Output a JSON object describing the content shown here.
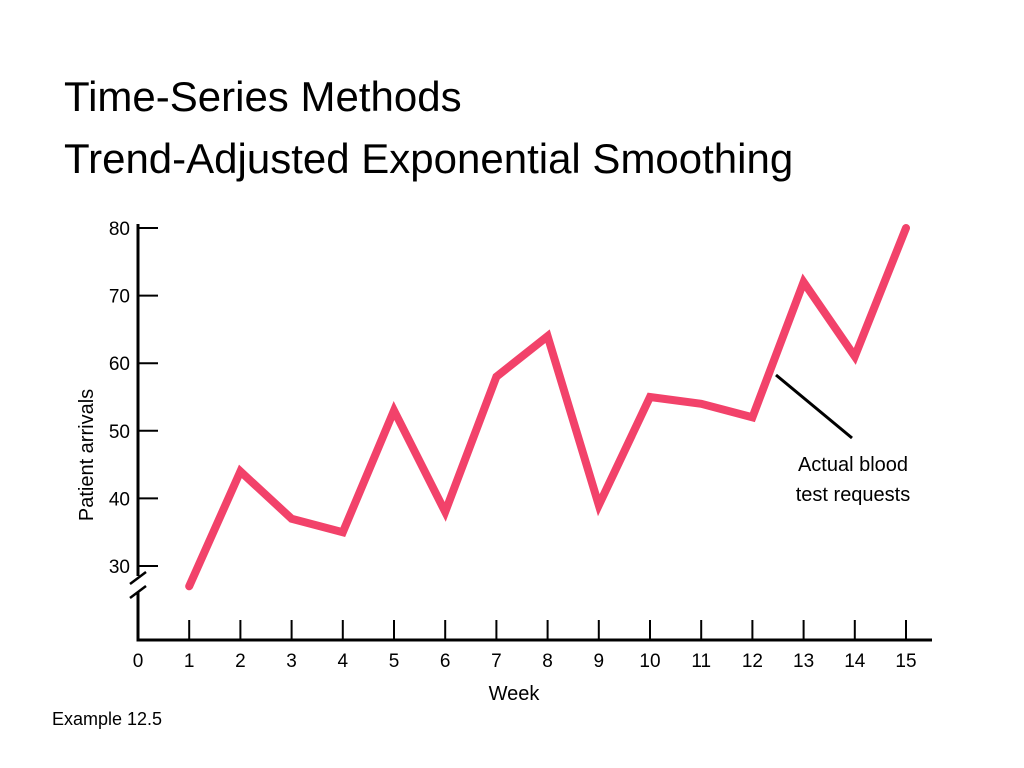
{
  "slide": {
    "title_line1": "Time-Series Methods",
    "title_line2": "Trend-Adjusted Exponential Smoothing",
    "footnote": "Example 12.5"
  },
  "chart_data": {
    "type": "line",
    "xlabel": "Week",
    "ylabel": "Patient arrivals",
    "x_ticks": [
      0,
      1,
      2,
      3,
      4,
      5,
      6,
      7,
      8,
      9,
      10,
      11,
      12,
      13,
      14,
      15
    ],
    "y_ticks": [
      30,
      40,
      50,
      60,
      70,
      80
    ],
    "ylim": [
      30,
      80
    ],
    "y_axis_break": true,
    "grid": false,
    "line_color": "#f2426a",
    "series": [
      {
        "x": [
          1,
          2,
          3,
          4,
          5,
          6,
          7,
          8,
          9,
          10,
          11,
          12,
          13,
          14,
          15
        ],
        "values": [
          27,
          44,
          37,
          35,
          53,
          38,
          58,
          64,
          39,
          55,
          54,
          52,
          72,
          61,
          80
        ]
      }
    ],
    "annotations": [
      {
        "text_line1": "Actual blood",
        "text_line2": "test requests",
        "points_to_x": 12.5
      }
    ]
  }
}
